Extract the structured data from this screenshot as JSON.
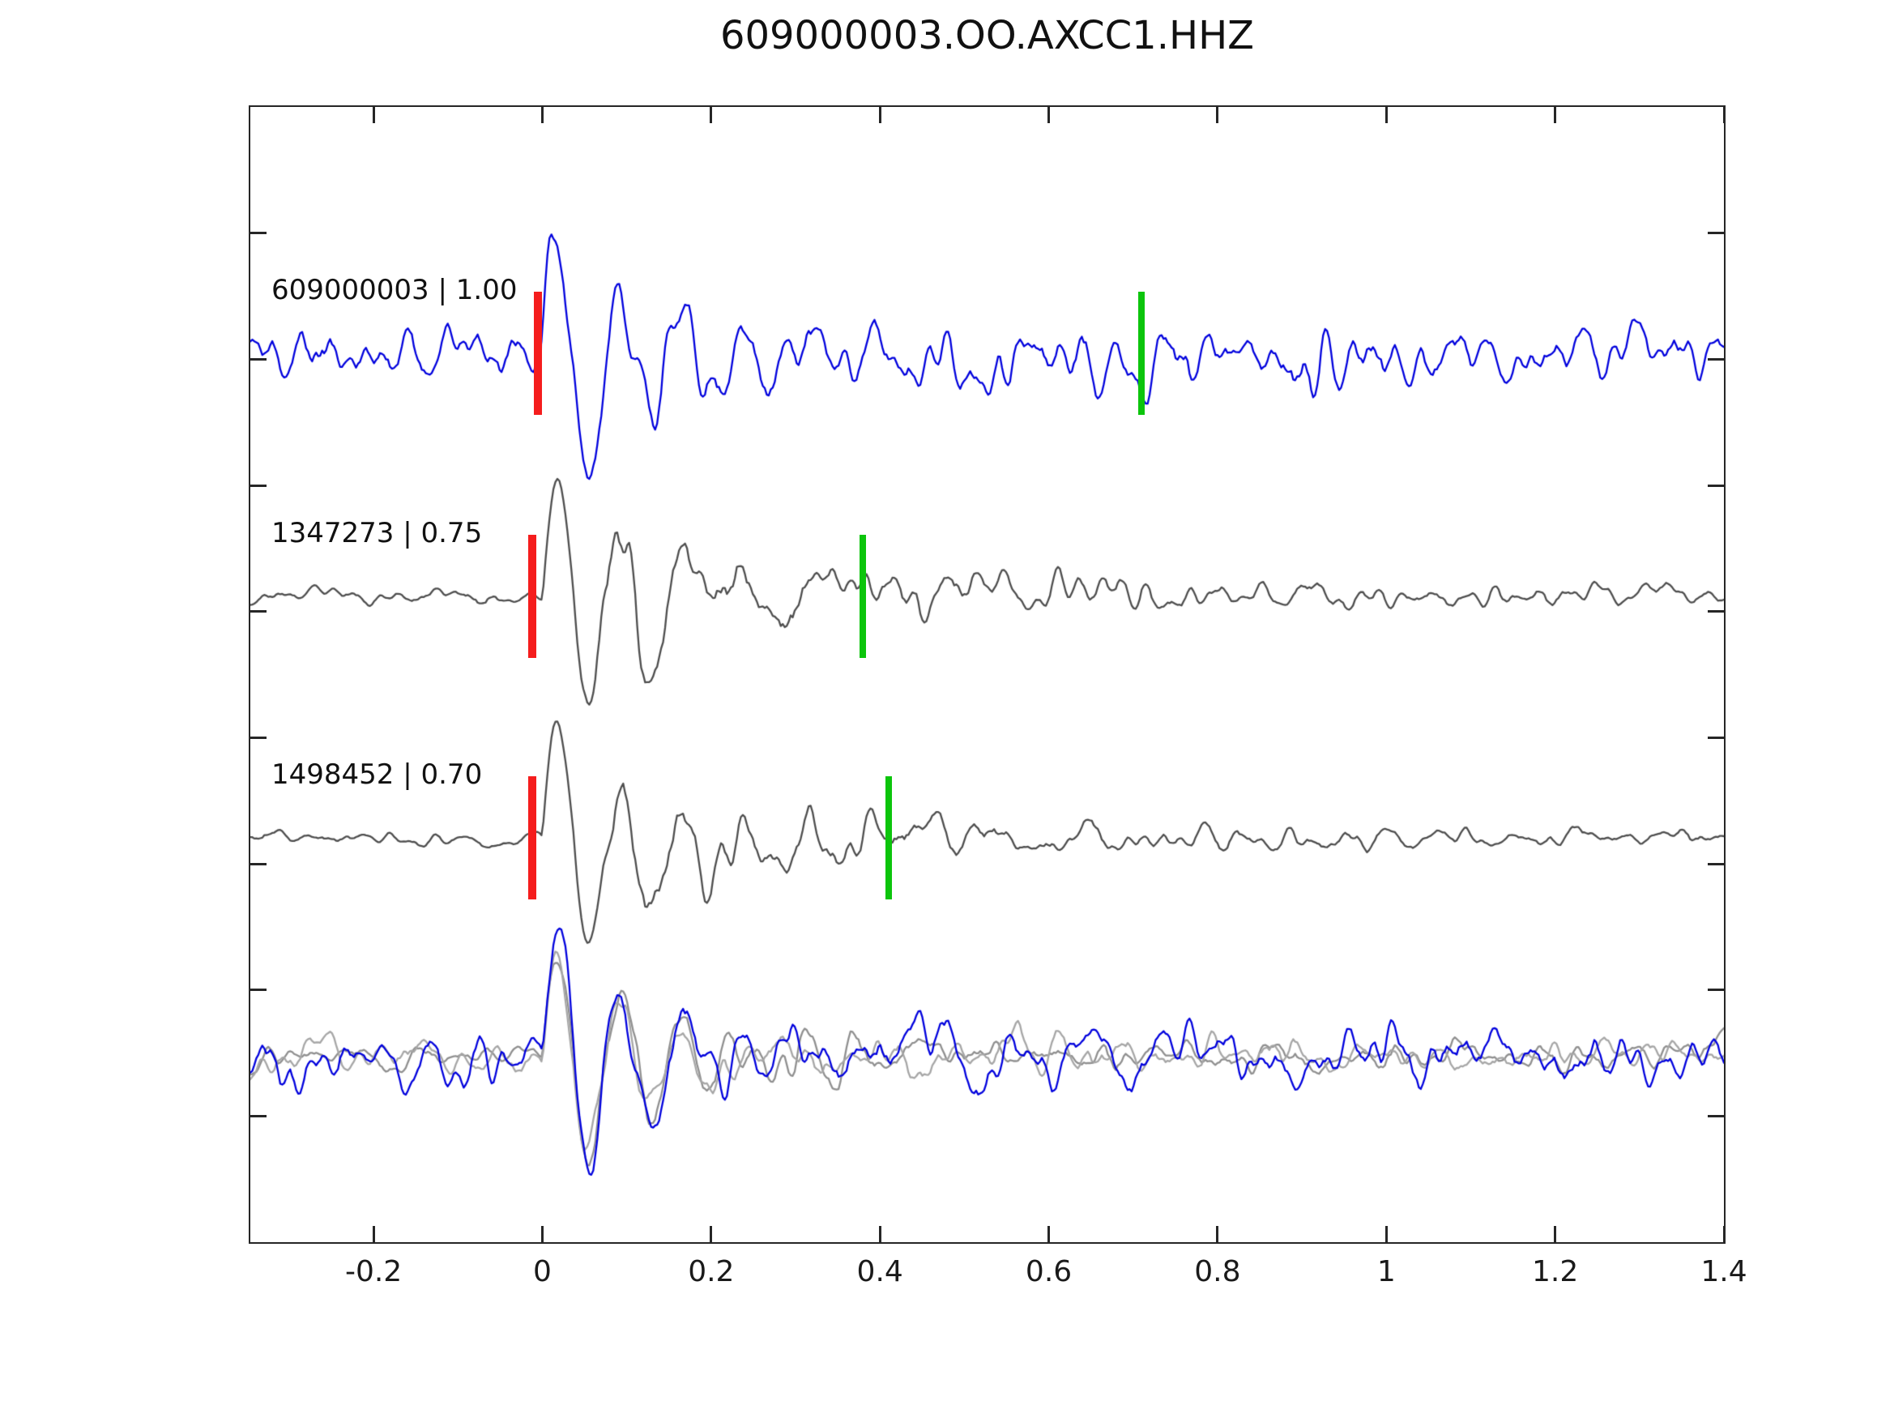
{
  "title": "609000003.OO.AXCC1.HHZ",
  "chart_data": {
    "type": "line",
    "title": "609000003.OO.AXCC1.HHZ",
    "xlabel": "",
    "ylabel": "",
    "xlim": [
      -0.346,
      1.4
    ],
    "grid": false,
    "legend": "none",
    "x_ticks": [
      {
        "value": -0.2,
        "label": "-0.2"
      },
      {
        "value": 0,
        "label": "0"
      },
      {
        "value": 0.2,
        "label": "0.2"
      },
      {
        "value": 0.4,
        "label": "0.4"
      },
      {
        "value": 0.6,
        "label": "0.6"
      },
      {
        "value": 0.8,
        "label": "0.8"
      },
      {
        "value": 1,
        "label": "1"
      },
      {
        "value": 1.2,
        "label": "1.2"
      },
      {
        "value": 1.4,
        "label": "1.4"
      }
    ],
    "markers": {
      "red_color": "#f51d1d",
      "green_color": "#0cc50c"
    },
    "traces": [
      {
        "name": "609000003",
        "label": "609000003 | 1.00",
        "correlation": 1.0,
        "color": "#0000dd",
        "kind": "noisy",
        "baseline_frac": 0.217,
        "seed": 11,
        "noise_amp": 62,
        "pulse_amp": 175,
        "neg_mult": 1.5,
        "coda_amp": 0,
        "picks": {
          "red_t": -0.005,
          "green_t": 0.71
        }
      },
      {
        "name": "1347273",
        "label": "1347273 | 0.75",
        "correlation": 0.75,
        "color": "#4d4d4d",
        "kind": "event",
        "baseline_frac": 0.431,
        "seed": 23,
        "noise_amp": 14,
        "pulse_amp": 170,
        "neg_mult": 1.35,
        "coda_amp": 80,
        "picks": {
          "red_t": -0.012,
          "green_t": 0.38
        }
      },
      {
        "name": "1498452",
        "label": "1498452 | 0.70",
        "correlation": 0.7,
        "color": "#4d4d4d",
        "kind": "event",
        "baseline_frac": 0.644,
        "seed": 37,
        "noise_amp": 14,
        "pulse_amp": 170,
        "neg_mult": 1.35,
        "coda_amp": 72,
        "picks": {
          "red_t": -0.012,
          "green_t": 0.41
        }
      },
      {
        "name": "overlay-detection-1",
        "label": null,
        "correlation": null,
        "color": "#8f8f8f",
        "kind": "event",
        "baseline_frac": 0.836,
        "seed": 51,
        "noise_amp": 32,
        "pulse_amp": 160,
        "neg_mult": 1.5,
        "coda_amp": 55,
        "picks": null
      },
      {
        "name": "overlay-detection-2",
        "label": null,
        "correlation": null,
        "color": "#a6a6a6",
        "kind": "event",
        "baseline_frac": 0.836,
        "seed": 63,
        "noise_amp": 30,
        "pulse_amp": 150,
        "neg_mult": 1.45,
        "coda_amp": 50,
        "picks": null
      },
      {
        "name": "overlay-template",
        "label": null,
        "correlation": null,
        "color": "#0000dd",
        "kind": "noisy",
        "baseline_frac": 0.836,
        "seed": 77,
        "noise_amp": 55,
        "pulse_amp": 170,
        "neg_mult": 1.5,
        "coda_amp": 0,
        "picks": null
      }
    ]
  }
}
